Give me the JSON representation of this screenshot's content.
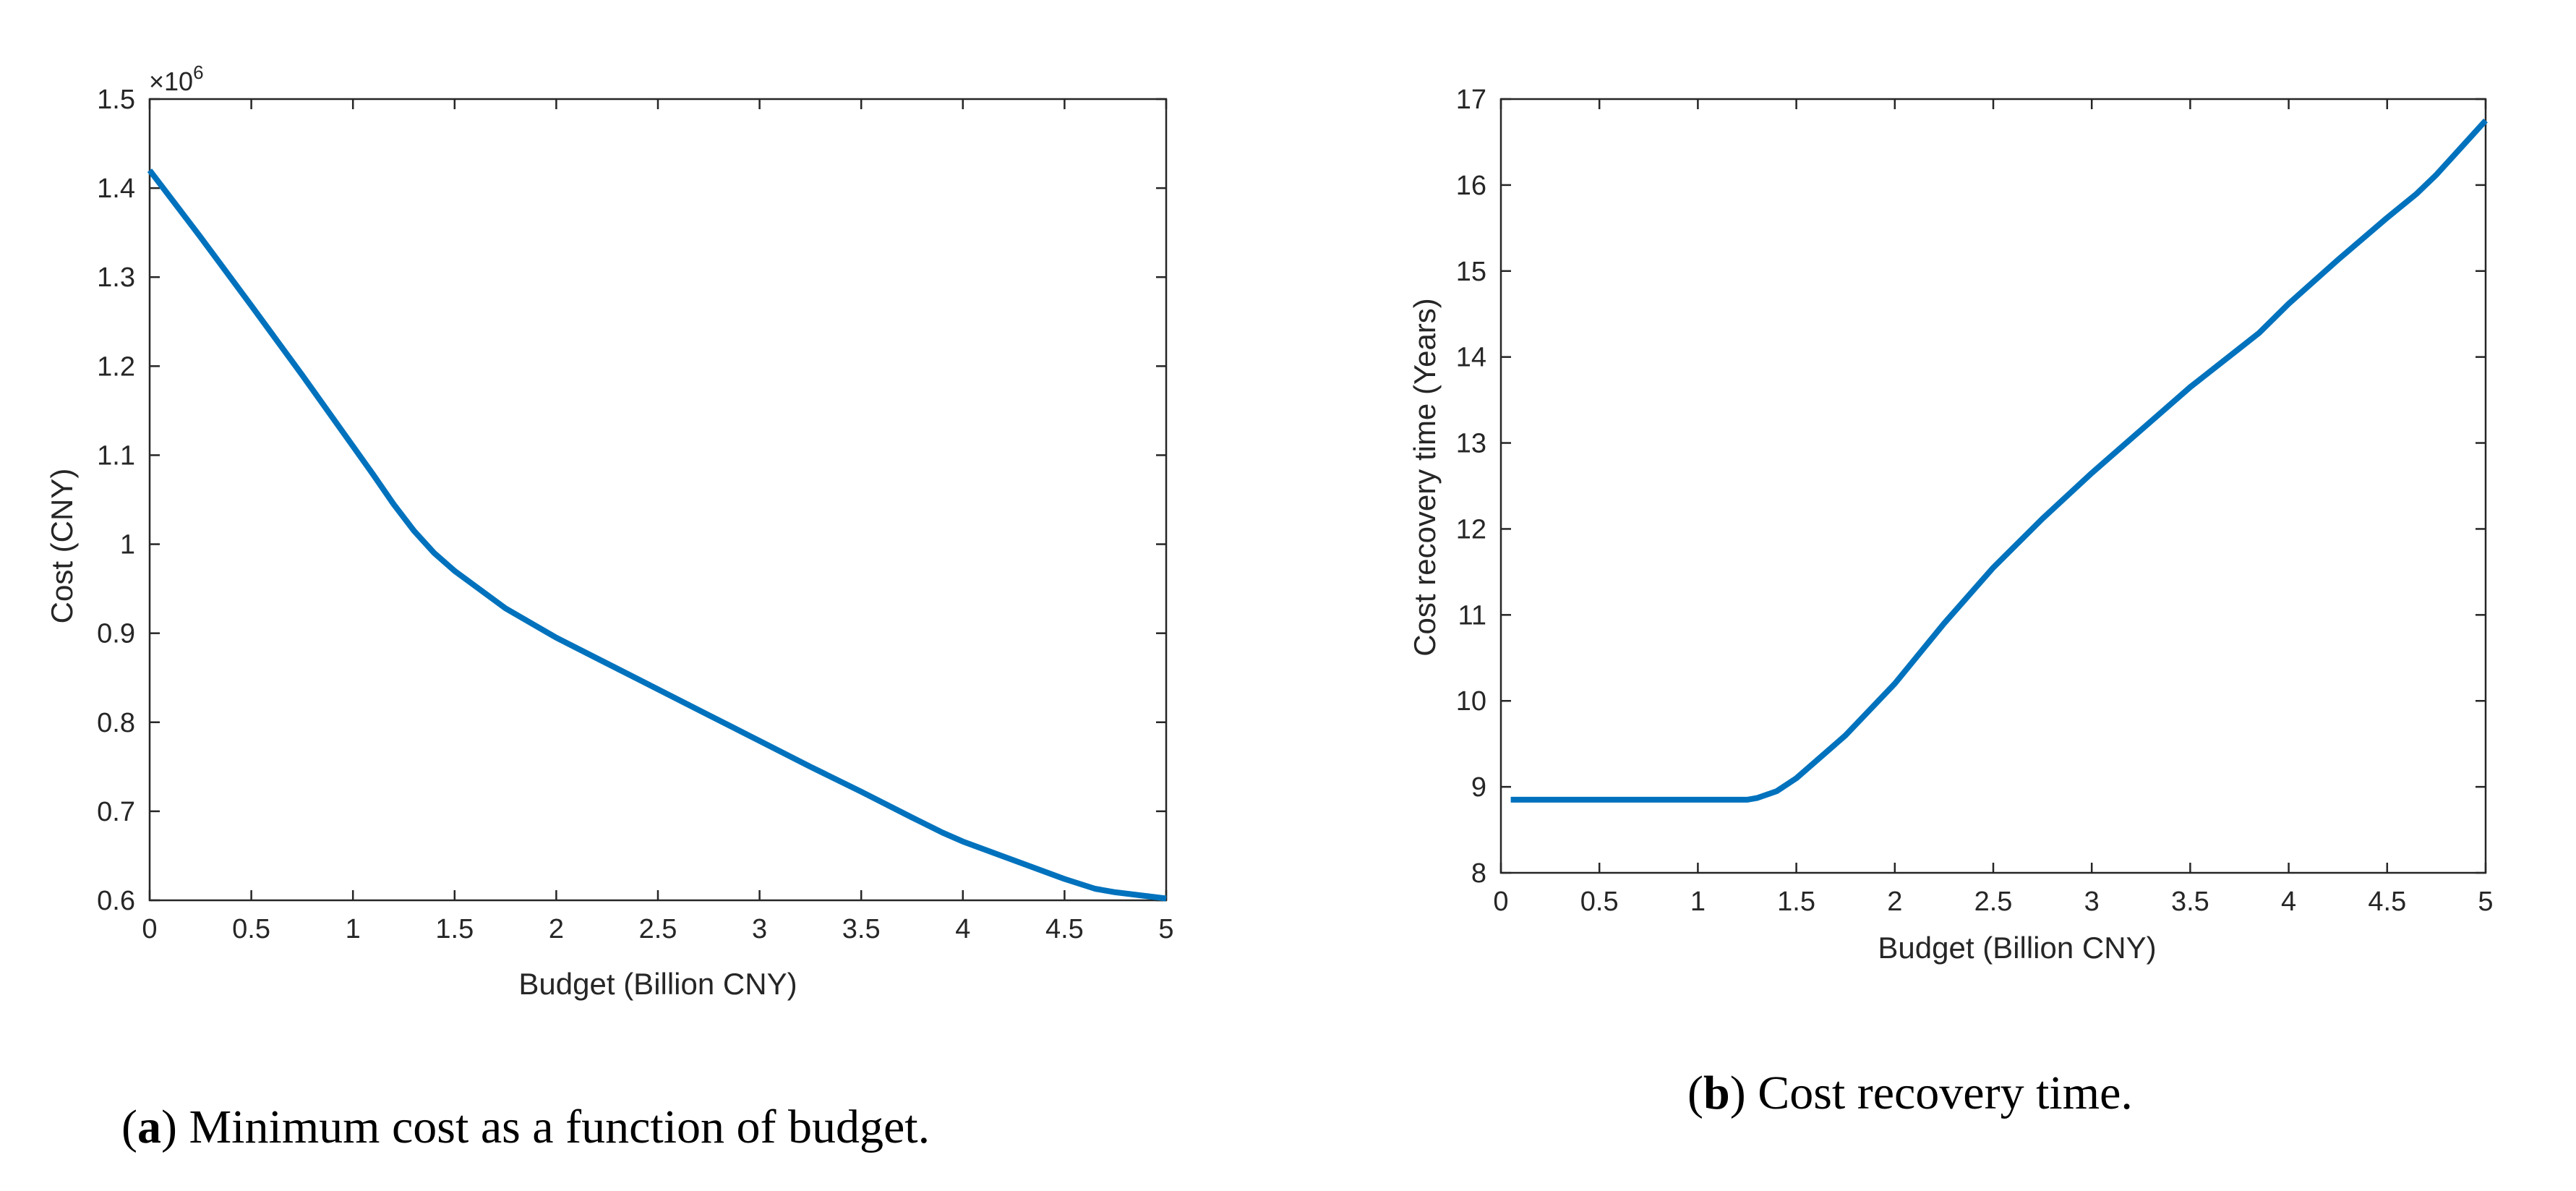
{
  "chart_data": [
    {
      "type": "line",
      "panel_label": "a",
      "caption": "Minimum cost as a function of budget.",
      "xlabel": "Budget (Billion CNY)",
      "ylabel": "Cost (CNY)",
      "y_exponent_base": "×10",
      "y_exponent_power": "6",
      "xlim": [
        0,
        5
      ],
      "ylim": [
        0.6,
        1.5
      ],
      "xticks": [
        0,
        0.5,
        1,
        1.5,
        2,
        2.5,
        3,
        3.5,
        4,
        4.5,
        5
      ],
      "xtick_labels": [
        "0",
        "0.5",
        "1",
        "1.5",
        "2",
        "2.5",
        "3",
        "3.5",
        "4",
        "4.5",
        "5"
      ],
      "yticks": [
        0.6,
        0.7,
        0.8,
        0.9,
        1.0,
        1.1,
        1.2,
        1.3,
        1.4,
        1.5
      ],
      "ytick_labels": [
        "0.6",
        "0.7",
        "0.8",
        "0.9",
        "1",
        "1.1",
        "1.2",
        "1.3",
        "1.4",
        "1.5"
      ],
      "grid": false,
      "color": "#0072BD",
      "series": [
        {
          "name": "Minimum cost",
          "x": [
            0,
            0.25,
            0.5,
            0.75,
            1.0,
            1.1,
            1.2,
            1.3,
            1.4,
            1.5,
            1.75,
            2.0,
            2.25,
            2.5,
            2.75,
            3.0,
            3.25,
            3.5,
            3.75,
            3.9,
            4.0,
            4.25,
            4.5,
            4.65,
            4.75,
            5.0
          ],
          "y": [
            1.42,
            1.345,
            1.268,
            1.19,
            1.11,
            1.078,
            1.045,
            1.015,
            0.99,
            0.97,
            0.928,
            0.895,
            0.866,
            0.837,
            0.808,
            0.779,
            0.75,
            0.722,
            0.693,
            0.676,
            0.666,
            0.645,
            0.624,
            0.613,
            0.609,
            0.602
          ]
        }
      ]
    },
    {
      "type": "line",
      "panel_label": "b",
      "caption": "Cost recovery time.",
      "xlabel": "Budget (Billion CNY)",
      "ylabel": "Cost recovery time (Years)",
      "xlim": [
        0,
        5
      ],
      "ylim": [
        8,
        17
      ],
      "xticks": [
        0,
        0.5,
        1,
        1.5,
        2,
        2.5,
        3,
        3.5,
        4,
        4.5,
        5
      ],
      "xtick_labels": [
        "0",
        "0.5",
        "1",
        "1.5",
        "2",
        "2.5",
        "3",
        "3.5",
        "4",
        "4.5",
        "5"
      ],
      "yticks": [
        8,
        9,
        10,
        11,
        12,
        13,
        14,
        15,
        16,
        17
      ],
      "ytick_labels": [
        "8",
        "9",
        "10",
        "11",
        "12",
        "13",
        "14",
        "15",
        "16",
        "17"
      ],
      "grid": false,
      "color": "#0072BD",
      "series": [
        {
          "name": "Cost recovery time",
          "x": [
            0.05,
            0.5,
            1.0,
            1.25,
            1.3,
            1.4,
            1.5,
            1.75,
            2.0,
            2.25,
            2.5,
            2.75,
            3.0,
            3.25,
            3.5,
            3.75,
            3.85,
            4.0,
            4.25,
            4.5,
            4.65,
            4.75,
            5.0
          ],
          "y": [
            8.85,
            8.85,
            8.85,
            8.85,
            8.87,
            8.95,
            9.1,
            9.6,
            10.2,
            10.9,
            11.55,
            12.12,
            12.65,
            13.15,
            13.65,
            14.1,
            14.28,
            14.62,
            15.13,
            15.62,
            15.9,
            16.12,
            16.75
          ]
        }
      ]
    }
  ]
}
